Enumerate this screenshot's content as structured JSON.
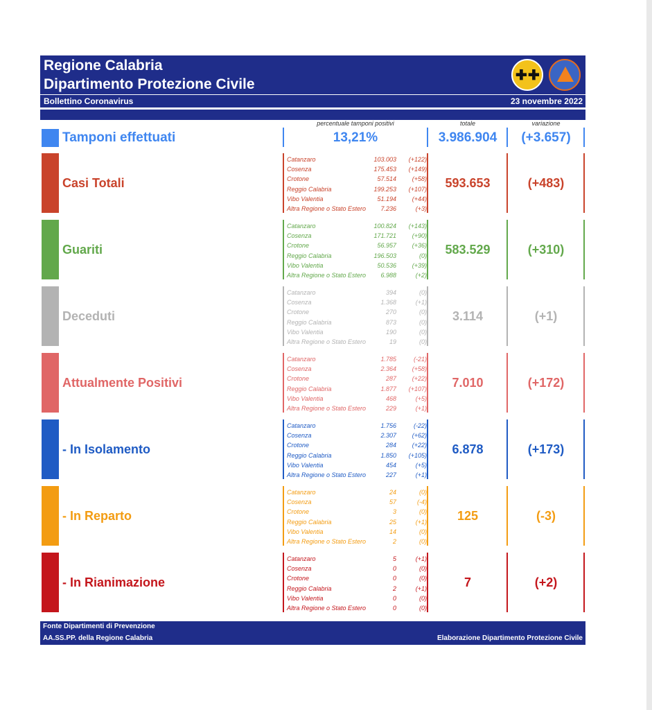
{
  "header": {
    "title_line1": "Regione Calabria",
    "title_line2": "Dipartimento Protezione Civile",
    "bulletin": "Bollettino Coronavirus",
    "date": "23 novembre 2022"
  },
  "columns": {
    "positive_pct": "percentuale tamponi positivi",
    "total": "totale",
    "variation": "variazione"
  },
  "tamponi": {
    "label": "Tamponi effettuati",
    "pct": "13,21%",
    "total": "3.986.904",
    "variation": "(+3.657)",
    "color": "#3f86f0"
  },
  "sections": [
    {
      "label": "Casi Totali",
      "color": "#c9432b",
      "total": "593.653",
      "variation": "(+483)",
      "rows": [
        {
          "name": "Catanzaro",
          "value": "103.003",
          "delta": "(+122)"
        },
        {
          "name": "Cosenza",
          "value": "175.453",
          "delta": "(+149)"
        },
        {
          "name": "Crotone",
          "value": "57.514",
          "delta": "(+58)"
        },
        {
          "name": "Reggio Calabria",
          "value": "199.253",
          "delta": "(+107)"
        },
        {
          "name": "Vibo Valentia",
          "value": "51.194",
          "delta": "(+44)"
        },
        {
          "name": "Altra Regione o Stato Estero",
          "value": "7.236",
          "delta": "(+3)"
        }
      ]
    },
    {
      "label": "Guariti",
      "color": "#62a84b",
      "total": "583.529",
      "variation": "(+310)",
      "rows": [
        {
          "name": "Catanzaro",
          "value": "100.824",
          "delta": "(+143)"
        },
        {
          "name": "Cosenza",
          "value": "171.721",
          "delta": "(+90)"
        },
        {
          "name": "Crotone",
          "value": "56.957",
          "delta": "(+36)"
        },
        {
          "name": "Reggio Calabria",
          "value": "196.503",
          "delta": "(0)"
        },
        {
          "name": "Vibo Valentia",
          "value": "50.536",
          "delta": "(+39)"
        },
        {
          "name": "Altra Regione o Stato Estero",
          "value": "6.988",
          "delta": "(+2)"
        }
      ]
    },
    {
      "label": "Deceduti",
      "color": "#b3b3b3",
      "total": "3.114",
      "variation": "(+1)",
      "rows": [
        {
          "name": "Catanzaro",
          "value": "394",
          "delta": "(0)"
        },
        {
          "name": "Cosenza",
          "value": "1.368",
          "delta": "(+1)"
        },
        {
          "name": "Crotone",
          "value": "270",
          "delta": "(0)"
        },
        {
          "name": "Reggio Calabria",
          "value": "873",
          "delta": "(0)"
        },
        {
          "name": "Vibo Valentia",
          "value": "190",
          "delta": "(0)"
        },
        {
          "name": "Altra Regione o Stato Estero",
          "value": "19",
          "delta": "(0)"
        }
      ]
    },
    {
      "label": "Attualmente Positivi",
      "color": "#e06666",
      "total": "7.010",
      "variation": "(+172)",
      "rows": [
        {
          "name": "Catanzaro",
          "value": "1.785",
          "delta": "(-21)"
        },
        {
          "name": "Cosenza",
          "value": "2.364",
          "delta": "(+58)"
        },
        {
          "name": "Crotone",
          "value": "287",
          "delta": "(+22)"
        },
        {
          "name": "Reggio Calabria",
          "value": "1.877",
          "delta": "(+107)"
        },
        {
          "name": "Vibo Valentia",
          "value": "468",
          "delta": "(+5)"
        },
        {
          "name": "Altra Regione o Stato Estero",
          "value": "229",
          "delta": "(+1)"
        }
      ]
    },
    {
      "label": "- In Isolamento",
      "color": "#1f5bc4",
      "total": "6.878",
      "variation": "(+173)",
      "rows": [
        {
          "name": "Catanzaro",
          "value": "1.756",
          "delta": "(-22)"
        },
        {
          "name": "Cosenza",
          "value": "2.307",
          "delta": "(+62)"
        },
        {
          "name": "Crotone",
          "value": "284",
          "delta": "(+22)"
        },
        {
          "name": "Reggio Calabria",
          "value": "1.850",
          "delta": "(+105)"
        },
        {
          "name": "Vibo Valentia",
          "value": "454",
          "delta": "(+5)"
        },
        {
          "name": "Altra Regione o Stato Estero",
          "value": "227",
          "delta": "(+1)"
        }
      ]
    },
    {
      "label": "- In Reparto",
      "color": "#f39c12",
      "total": "125",
      "variation": "(-3)",
      "rows": [
        {
          "name": "Catanzaro",
          "value": "24",
          "delta": "(0)"
        },
        {
          "name": "Cosenza",
          "value": "57",
          "delta": "(-4)"
        },
        {
          "name": "Crotone",
          "value": "3",
          "delta": "(0)"
        },
        {
          "name": "Reggio Calabria",
          "value": "25",
          "delta": "(+1)"
        },
        {
          "name": "Vibo Valentia",
          "value": "14",
          "delta": "(0)"
        },
        {
          "name": "Altra Regione o Stato Estero",
          "value": "2",
          "delta": "(0)"
        }
      ]
    },
    {
      "label": "- In Rianimazione",
      "color": "#c4161c",
      "total": "7",
      "variation": "(+2)",
      "rows": [
        {
          "name": "Catanzaro",
          "value": "5",
          "delta": "(+1)"
        },
        {
          "name": "Cosenza",
          "value": "0",
          "delta": "(0)"
        },
        {
          "name": "Crotone",
          "value": "0",
          "delta": "(0)"
        },
        {
          "name": "Reggio Calabria",
          "value": "2",
          "delta": "(+1)"
        },
        {
          "name": "Vibo Valentia",
          "value": "0",
          "delta": "(0)"
        },
        {
          "name": "Altra Regione o Stato Estero",
          "value": "0",
          "delta": "(0)"
        }
      ]
    }
  ],
  "footer": {
    "source_line1": "Fonte Dipartimenti di Prevenzione",
    "source_line2": "AA.SS.PP.  della Regione Calabria",
    "elaboration": "Elaborazione Dipartimento Protezione Civile"
  }
}
